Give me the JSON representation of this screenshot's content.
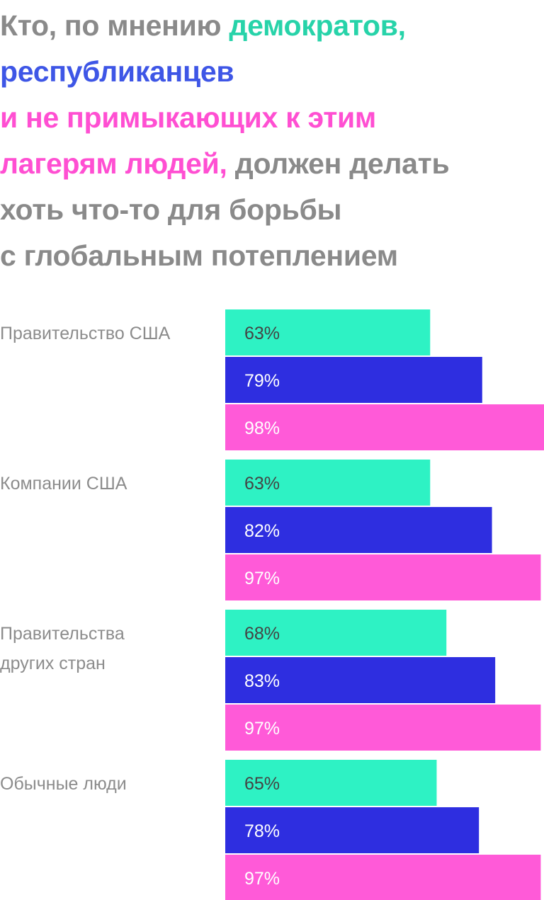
{
  "title": {
    "line1_a": "Кто, по мнению ",
    "line1_b": "демократов,",
    "line2": "республиканцев",
    "line3": "и не примыкающих к этим",
    "line4_a": "лагерям людей,",
    "line4_b": " должен делать",
    "line5": "хоть что-то для борьбы",
    "line6": "с глобальным потеплением"
  },
  "colors": {
    "democrats": "#2ef2c4",
    "republicans": "#2e2ee0",
    "independents": "#ff5ad8",
    "title_gray": "#8a8a8a",
    "democrats_text": "#27d3a9",
    "republicans_text": "#3e56e6",
    "independents_text": "#ff4fd2"
  },
  "chart_data": {
    "type": "bar",
    "orientation": "horizontal",
    "categories": [
      "Правительство США",
      "Компании США",
      "Правительства\nдругих стран",
      "Обычные люди"
    ],
    "series": [
      {
        "values": [
          63,
          63,
          68,
          65
        ],
        "labels": [
          "63%",
          "63%",
          "68%",
          "65%"
        ],
        "color": "#2ef2c4"
      },
      {
        "values": [
          79,
          82,
          83,
          78
        ],
        "labels": [
          "79%",
          "82%",
          "83%",
          "78%"
        ],
        "color": "#2e2ee0"
      },
      {
        "values": [
          98,
          97,
          97,
          97
        ],
        "labels": [
          "98%",
          "97%",
          "97%",
          "97%"
        ],
        "color": "#ff5ad8"
      }
    ],
    "xlim": [
      0,
      100
    ],
    "grid": false,
    "legend": "none"
  }
}
